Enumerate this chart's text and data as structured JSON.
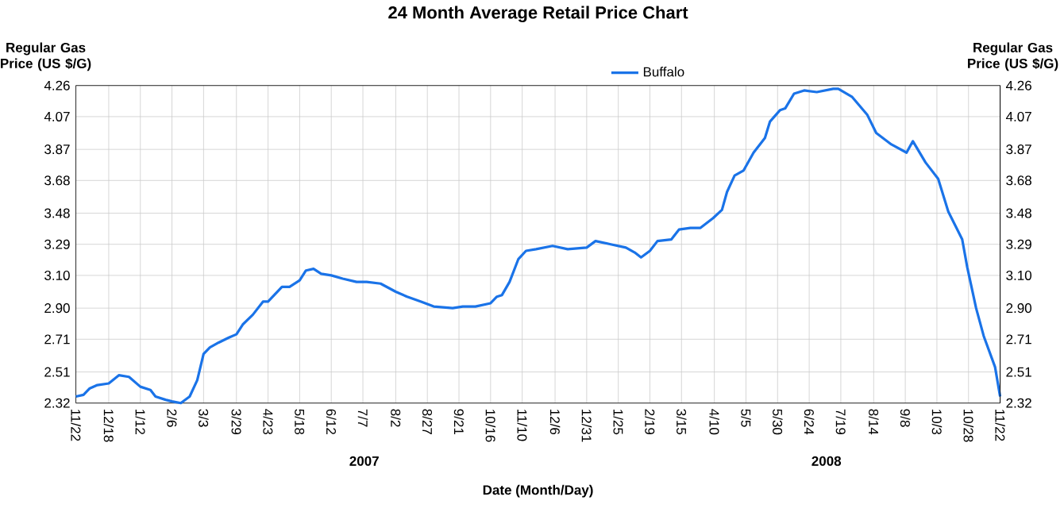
{
  "chart_data": {
    "type": "line",
    "title": "24 Month Average Retail Price Chart",
    "xlabel": "Date (Month/Day)",
    "ylabel": "Regular Gas Price (US $/G)",
    "y2label": "Regular Gas Price (US $/G)",
    "annotations": [
      "2007",
      "2008"
    ],
    "xlim": [
      "2006-11-22",
      "2008-11-22"
    ],
    "xticks": [
      {
        "value": "2006-11-22",
        "label": "11/22"
      },
      {
        "value": "2006-12-18",
        "label": "12/18"
      },
      {
        "value": "2007-01-12",
        "label": "1/12"
      },
      {
        "value": "2007-02-06",
        "label": "2/6"
      },
      {
        "value": "2007-03-03",
        "label": "3/3"
      },
      {
        "value": "2007-03-29",
        "label": "3/29"
      },
      {
        "value": "2007-04-23",
        "label": "4/23"
      },
      {
        "value": "2007-05-18",
        "label": "5/18"
      },
      {
        "value": "2007-06-12",
        "label": "6/12"
      },
      {
        "value": "2007-07-07",
        "label": "7/7"
      },
      {
        "value": "2007-08-02",
        "label": "8/2"
      },
      {
        "value": "2007-08-27",
        "label": "8/27"
      },
      {
        "value": "2007-09-21",
        "label": "9/21"
      },
      {
        "value": "2007-10-16",
        "label": "10/16"
      },
      {
        "value": "2007-11-10",
        "label": "11/10"
      },
      {
        "value": "2007-12-06",
        "label": "12/6"
      },
      {
        "value": "2007-12-31",
        "label": "12/31"
      },
      {
        "value": "2008-01-25",
        "label": "1/25"
      },
      {
        "value": "2008-02-19",
        "label": "2/19"
      },
      {
        "value": "2008-03-15",
        "label": "3/15"
      },
      {
        "value": "2008-04-10",
        "label": "4/10"
      },
      {
        "value": "2008-05-05",
        "label": "5/5"
      },
      {
        "value": "2008-05-30",
        "label": "5/30"
      },
      {
        "value": "2008-06-24",
        "label": "6/24"
      },
      {
        "value": "2008-07-19",
        "label": "7/19"
      },
      {
        "value": "2008-08-14",
        "label": "8/14"
      },
      {
        "value": "2008-09-08",
        "label": "9/8"
      },
      {
        "value": "2008-10-03",
        "label": "10/3"
      },
      {
        "value": "2008-10-28",
        "label": "10/28"
      },
      {
        "value": "2008-11-22",
        "label": "11/22"
      }
    ],
    "ylim": [
      2.32,
      4.26
    ],
    "yticks": [
      2.32,
      2.51,
      2.71,
      {
        "value": 2.9,
        "label": "2.90"
      },
      {
        "value": 3.1,
        "label": "3.10"
      },
      3.29,
      3.48,
      3.68,
      3.87,
      4.07,
      4.26
    ],
    "y2lim": [
      2.32,
      4.26
    ],
    "y2ticks": [
      2.32,
      2.51,
      2.71,
      {
        "value": 2.9,
        "label": "2.90"
      },
      {
        "value": 3.1,
        "label": "3.10"
      },
      3.29,
      3.48,
      3.68,
      3.87,
      4.07,
      4.26
    ],
    "grid": true,
    "legend": "top",
    "x": [
      "2006-11-22",
      "2006-11-28",
      "2006-12-03",
      "2006-12-09",
      "2006-12-18",
      "2006-12-26",
      "2007-01-03",
      "2007-01-12",
      "2007-01-20",
      "2007-01-24",
      "2007-02-01",
      "2007-02-06",
      "2007-02-13",
      "2007-02-20",
      "2007-02-26",
      "2007-03-03",
      "2007-03-08",
      "2007-03-15",
      "2007-03-23",
      "2007-03-29",
      "2007-04-03",
      "2007-04-11",
      "2007-04-19",
      "2007-04-23",
      "2007-05-04",
      "2007-05-10",
      "2007-05-18",
      "2007-05-23",
      "2007-05-29",
      "2007-06-04",
      "2007-06-12",
      "2007-06-21",
      "2007-07-02",
      "2007-07-10",
      "2007-07-21",
      "2007-08-02",
      "2007-08-11",
      "2007-08-22",
      "2007-09-01",
      "2007-09-16",
      "2007-09-24",
      "2007-10-04",
      "2007-10-16",
      "2007-10-21",
      "2007-10-25",
      "2007-10-31",
      "2007-11-07",
      "2007-11-13",
      "2007-11-21",
      "2007-12-04",
      "2007-12-16",
      "2007-12-31",
      "2008-01-07",
      "2008-01-19",
      "2008-01-31",
      "2008-02-07",
      "2008-02-12",
      "2008-02-19",
      "2008-02-25",
      "2008-03-07",
      "2008-03-13",
      "2008-03-22",
      "2008-03-30",
      "2008-04-09",
      "2008-04-16",
      "2008-04-20",
      "2008-04-26",
      "2008-05-03",
      "2008-05-11",
      "2008-05-20",
      "2008-05-24",
      "2008-06-01",
      "2008-06-05",
      "2008-06-12",
      "2008-06-20",
      "2008-06-30",
      "2008-07-13",
      "2008-07-17",
      "2008-07-28",
      "2008-08-09",
      "2008-08-16",
      "2008-08-28",
      "2008-09-09",
      "2008-09-14",
      "2008-09-24",
      "2008-10-04",
      "2008-10-12",
      "2008-10-23",
      "2008-10-27",
      "2008-11-03",
      "2008-11-09",
      "2008-11-18",
      "2008-11-22"
    ],
    "series": [
      {
        "name": "Buffalo",
        "color": "#1a73e8",
        "values": [
          2.36,
          2.37,
          2.41,
          2.43,
          2.44,
          2.49,
          2.48,
          2.42,
          2.4,
          2.36,
          2.34,
          2.33,
          2.32,
          2.36,
          2.46,
          2.62,
          2.66,
          2.69,
          2.72,
          2.74,
          2.8,
          2.86,
          2.94,
          2.94,
          3.03,
          3.03,
          3.07,
          3.13,
          3.14,
          3.11,
          3.1,
          3.08,
          3.06,
          3.06,
          3.05,
          3.0,
          2.97,
          2.94,
          2.91,
          2.9,
          2.91,
          2.91,
          2.93,
          2.97,
          2.98,
          3.06,
          3.2,
          3.25,
          3.26,
          3.28,
          3.26,
          3.27,
          3.31,
          3.29,
          3.27,
          3.24,
          3.21,
          3.25,
          3.31,
          3.32,
          3.38,
          3.39,
          3.39,
          3.45,
          3.5,
          3.61,
          3.71,
          3.74,
          3.85,
          3.94,
          4.04,
          4.11,
          4.12,
          4.21,
          4.23,
          4.22,
          4.24,
          4.24,
          4.19,
          4.08,
          3.97,
          3.9,
          3.85,
          3.92,
          3.79,
          3.69,
          3.49,
          3.32,
          3.15,
          2.9,
          2.73,
          2.54,
          2.36
        ]
      }
    ]
  }
}
